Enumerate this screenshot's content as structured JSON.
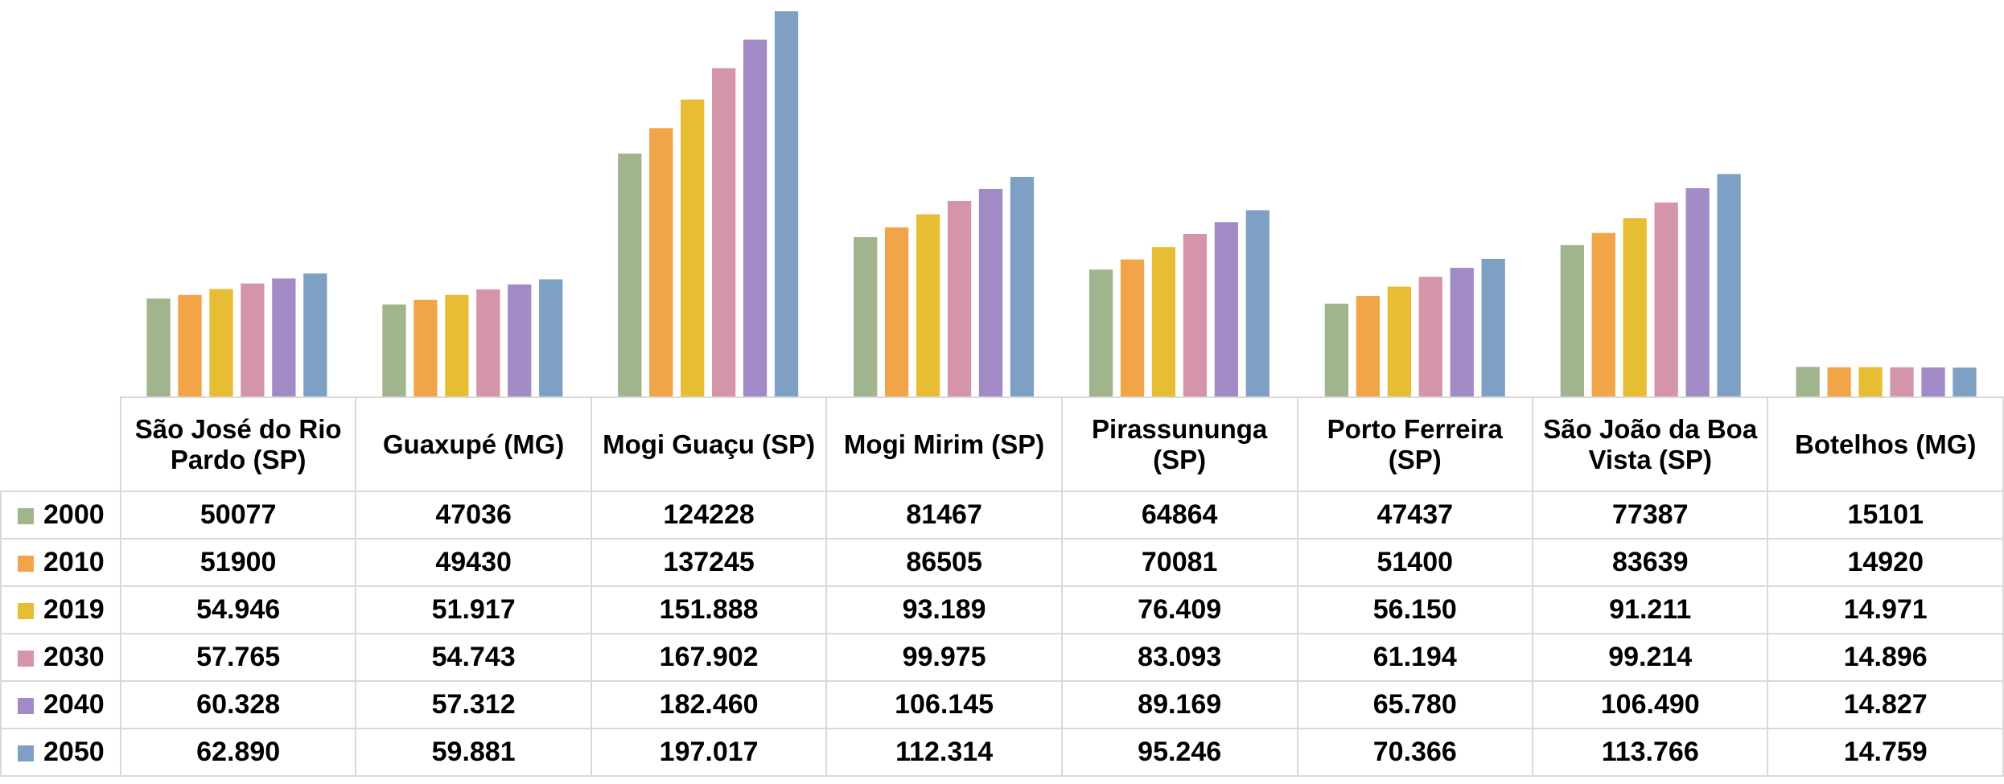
{
  "chart_data": {
    "type": "bar",
    "categories": [
      "São José do Rio Pardo (SP)",
      "Guaxupé (MG)",
      "Mogi Guaçu (SP)",
      "Mogi Mirim (SP)",
      "Pirassununga (SP)",
      "Porto Ferreira (SP)",
      "São João da Boa Vista (SP)",
      "Botelhos (MG)"
    ],
    "series": [
      {
        "name": "2000",
        "color": "#a0b48e",
        "values": [
          50077,
          47036,
          124228,
          81467,
          64864,
          47437,
          77387,
          15101
        ]
      },
      {
        "name": "2010",
        "color": "#f2a548",
        "values": [
          51900,
          49430,
          137245,
          86505,
          70081,
          51400,
          83639,
          14920
        ]
      },
      {
        "name": "2019",
        "color": "#e6bd33",
        "values": [
          54946,
          51917,
          151888,
          93189,
          76409,
          56150,
          91211,
          14971
        ],
        "value_labels": [
          "54.946",
          "51.917",
          "151.888",
          "93.189",
          "76.409",
          "56.150",
          "91.211",
          "14.971"
        ]
      },
      {
        "name": "2030",
        "color": "#d495a8",
        "values": [
          57765,
          54743,
          167902,
          99975,
          83093,
          61194,
          99214,
          14896
        ],
        "value_labels": [
          "57.765",
          "54.743",
          "167.902",
          "99.975",
          "83.093",
          "61.194",
          "99.214",
          "14.896"
        ]
      },
      {
        "name": "2040",
        "color": "#a28ac6",
        "values": [
          60328,
          57312,
          182460,
          106145,
          89169,
          65780,
          106490,
          14827
        ],
        "value_labels": [
          "60.328",
          "57.312",
          "182.460",
          "106.145",
          "89.169",
          "65.780",
          "106.490",
          "14.827"
        ]
      },
      {
        "name": "2050",
        "color": "#7fa0c5",
        "values": [
          62890,
          59881,
          197017,
          112314,
          95246,
          70366,
          113766,
          14759
        ],
        "value_labels": [
          "62.890",
          "59.881",
          "197.017",
          "112.314",
          "95.246",
          "70.366",
          "113.766",
          "14.759"
        ]
      }
    ]
  }
}
